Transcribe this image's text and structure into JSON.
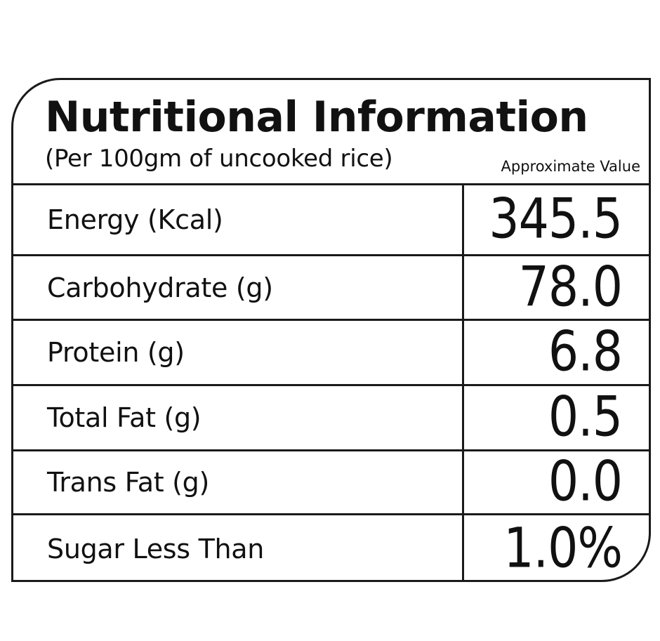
{
  "header": {
    "title": "Nutritional Information",
    "subtitle": "(Per 100gm of uncooked rice)",
    "note": "Approximate Value"
  },
  "rows": [
    {
      "label": "Energy (Kcal)",
      "value": "345.5"
    },
    {
      "label": "Carbohydrate (g)",
      "value": "78.0"
    },
    {
      "label": "Protein (g)",
      "value": "6.8"
    },
    {
      "label": "Total Fat (g)",
      "value": "0.5"
    },
    {
      "label": "Trans Fat (g)",
      "value": "0.0"
    },
    {
      "label": "Sugar Less Than",
      "value": "1.0%"
    }
  ]
}
